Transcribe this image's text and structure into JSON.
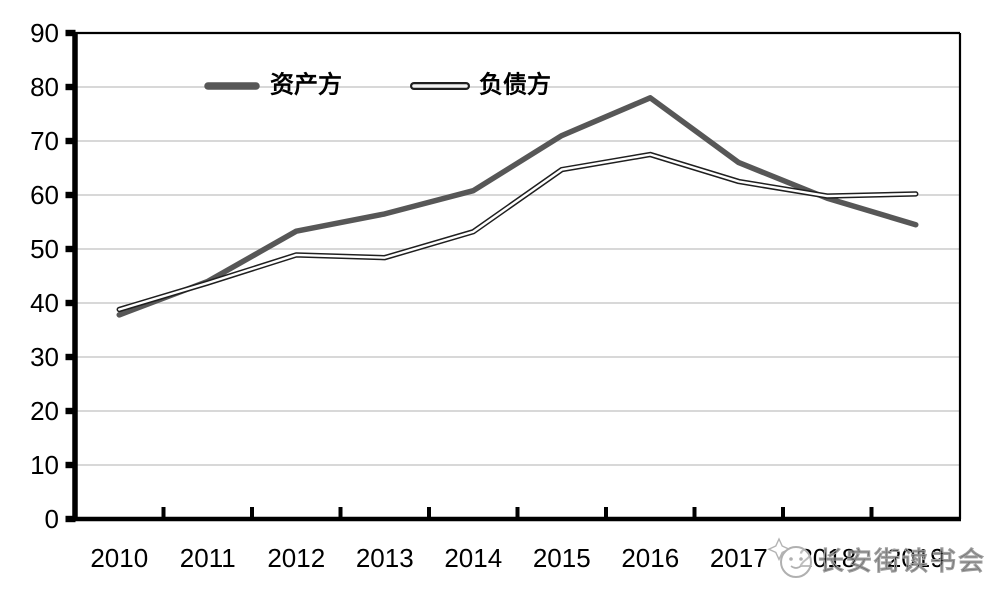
{
  "chart_data": {
    "type": "line",
    "title": "",
    "xlabel": "",
    "ylabel": "",
    "categories": [
      "2010",
      "2011",
      "2012",
      "2013",
      "2014",
      "2015",
      "2016",
      "2017",
      "2018",
      "2019"
    ],
    "y_tick_labels": [
      "0",
      "10",
      "20",
      "30",
      "40",
      "50",
      "60",
      "70",
      "80",
      "90"
    ],
    "ylim": [
      0,
      90
    ],
    "ytick_step": 10,
    "grid": true,
    "legend_position": "top-center-inside",
    "series": [
      {
        "name": "资产方",
        "style": "thick-solid",
        "color": "#575757",
        "values": [
          37.8,
          44.0,
          53.3,
          56.5,
          60.8,
          71.0,
          78.0,
          66.0,
          59.4,
          54.5
        ]
      },
      {
        "name": "负债方",
        "style": "double-outline",
        "color": "#1f1f1f",
        "values": [
          38.8,
          43.7,
          48.9,
          48.4,
          53.2,
          64.7,
          67.5,
          62.5,
          59.8,
          60.2
        ]
      }
    ]
  },
  "watermark": {
    "text": "长安街读书会",
    "icon": "sparkle-and-round-face-logo"
  },
  "colors": {
    "background": "#ffffff",
    "grid": "#cccccc",
    "axis": "#000000",
    "asset_line": "#575757",
    "liability_line": "#1f1f1f",
    "watermark_stroke": "#9e9e9e",
    "watermark_fill": "#ffffff"
  }
}
